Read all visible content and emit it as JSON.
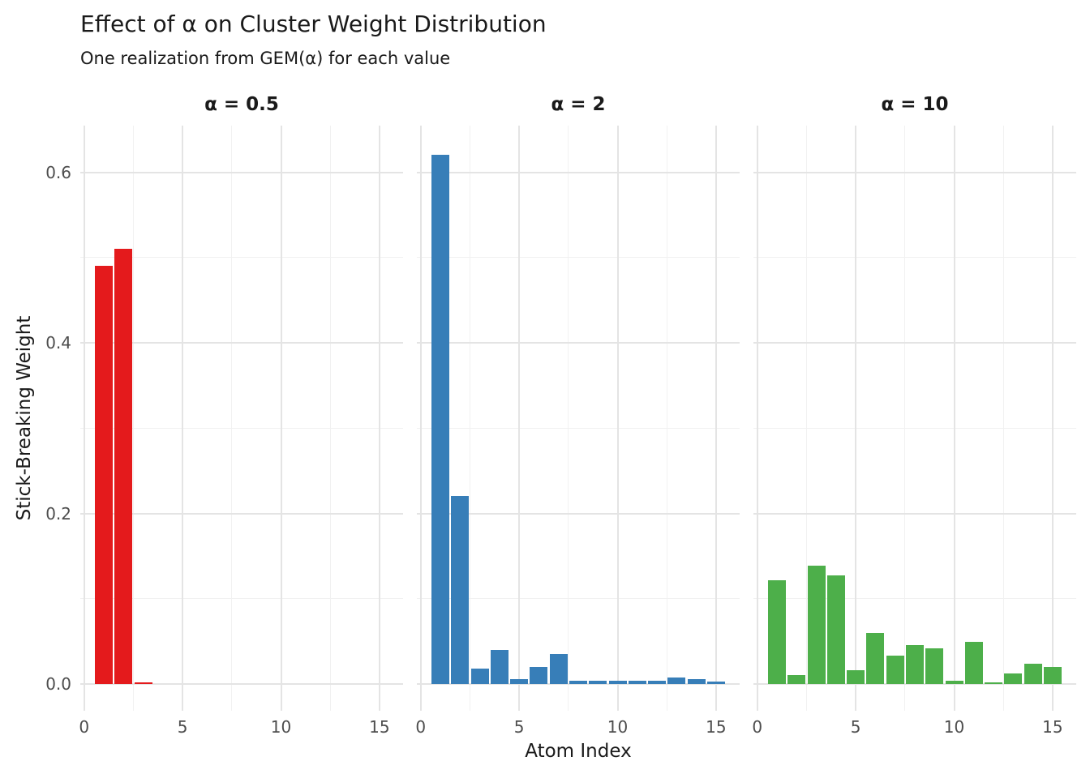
{
  "chart_data": {
    "type": "bar",
    "title": "Effect of α on Cluster Weight Distribution",
    "subtitle": "One realization from GEM(α) for each value",
    "xlabel": "Atom Index",
    "ylabel": "Stick-Breaking Weight",
    "x": [
      1,
      2,
      3,
      4,
      5,
      6,
      7,
      8,
      9,
      10,
      11,
      12,
      13,
      14,
      15
    ],
    "x_ticks": [
      {
        "label": "0",
        "value": 0
      },
      {
        "label": "5",
        "value": 5
      },
      {
        "label": "10",
        "value": 10
      },
      {
        "label": "15",
        "value": 15
      }
    ],
    "x_minor_ticks": [
      2.5,
      7.5,
      12.5
    ],
    "y_ticks": [
      {
        "label": "0.0",
        "value": 0.0
      },
      {
        "label": "0.2",
        "value": 0.2
      },
      {
        "label": "0.4",
        "value": 0.4
      },
      {
        "label": "0.6",
        "value": 0.6
      }
    ],
    "y_minor_ticks": [
      0.1,
      0.3,
      0.5
    ],
    "xlim": [
      -0.2,
      16.2
    ],
    "ylim": [
      -0.031,
      0.655
    ],
    "grid": true,
    "legend_position": "none",
    "panels": [
      {
        "facet_label": "α = 0.5",
        "color": "#E41A1C",
        "values": [
          0.49,
          0.51,
          0.002,
          0,
          0,
          0,
          0,
          0,
          0,
          0,
          0,
          0,
          0,
          0,
          0
        ]
      },
      {
        "facet_label": "α = 2",
        "color": "#377EB8",
        "values": [
          0.62,
          0.22,
          0.018,
          0.04,
          0.006,
          0.02,
          0.035,
          0.004,
          0.004,
          0.0035,
          0.004,
          0.0035,
          0.008,
          0.006,
          0.003
        ]
      },
      {
        "facet_label": "α = 10",
        "color": "#4DAF4A",
        "values": [
          0.122,
          0.01,
          0.139,
          0.127,
          0.016,
          0.06,
          0.033,
          0.046,
          0.042,
          0.004,
          0.049,
          0.002,
          0.012,
          0.024,
          0.02
        ]
      }
    ]
  }
}
